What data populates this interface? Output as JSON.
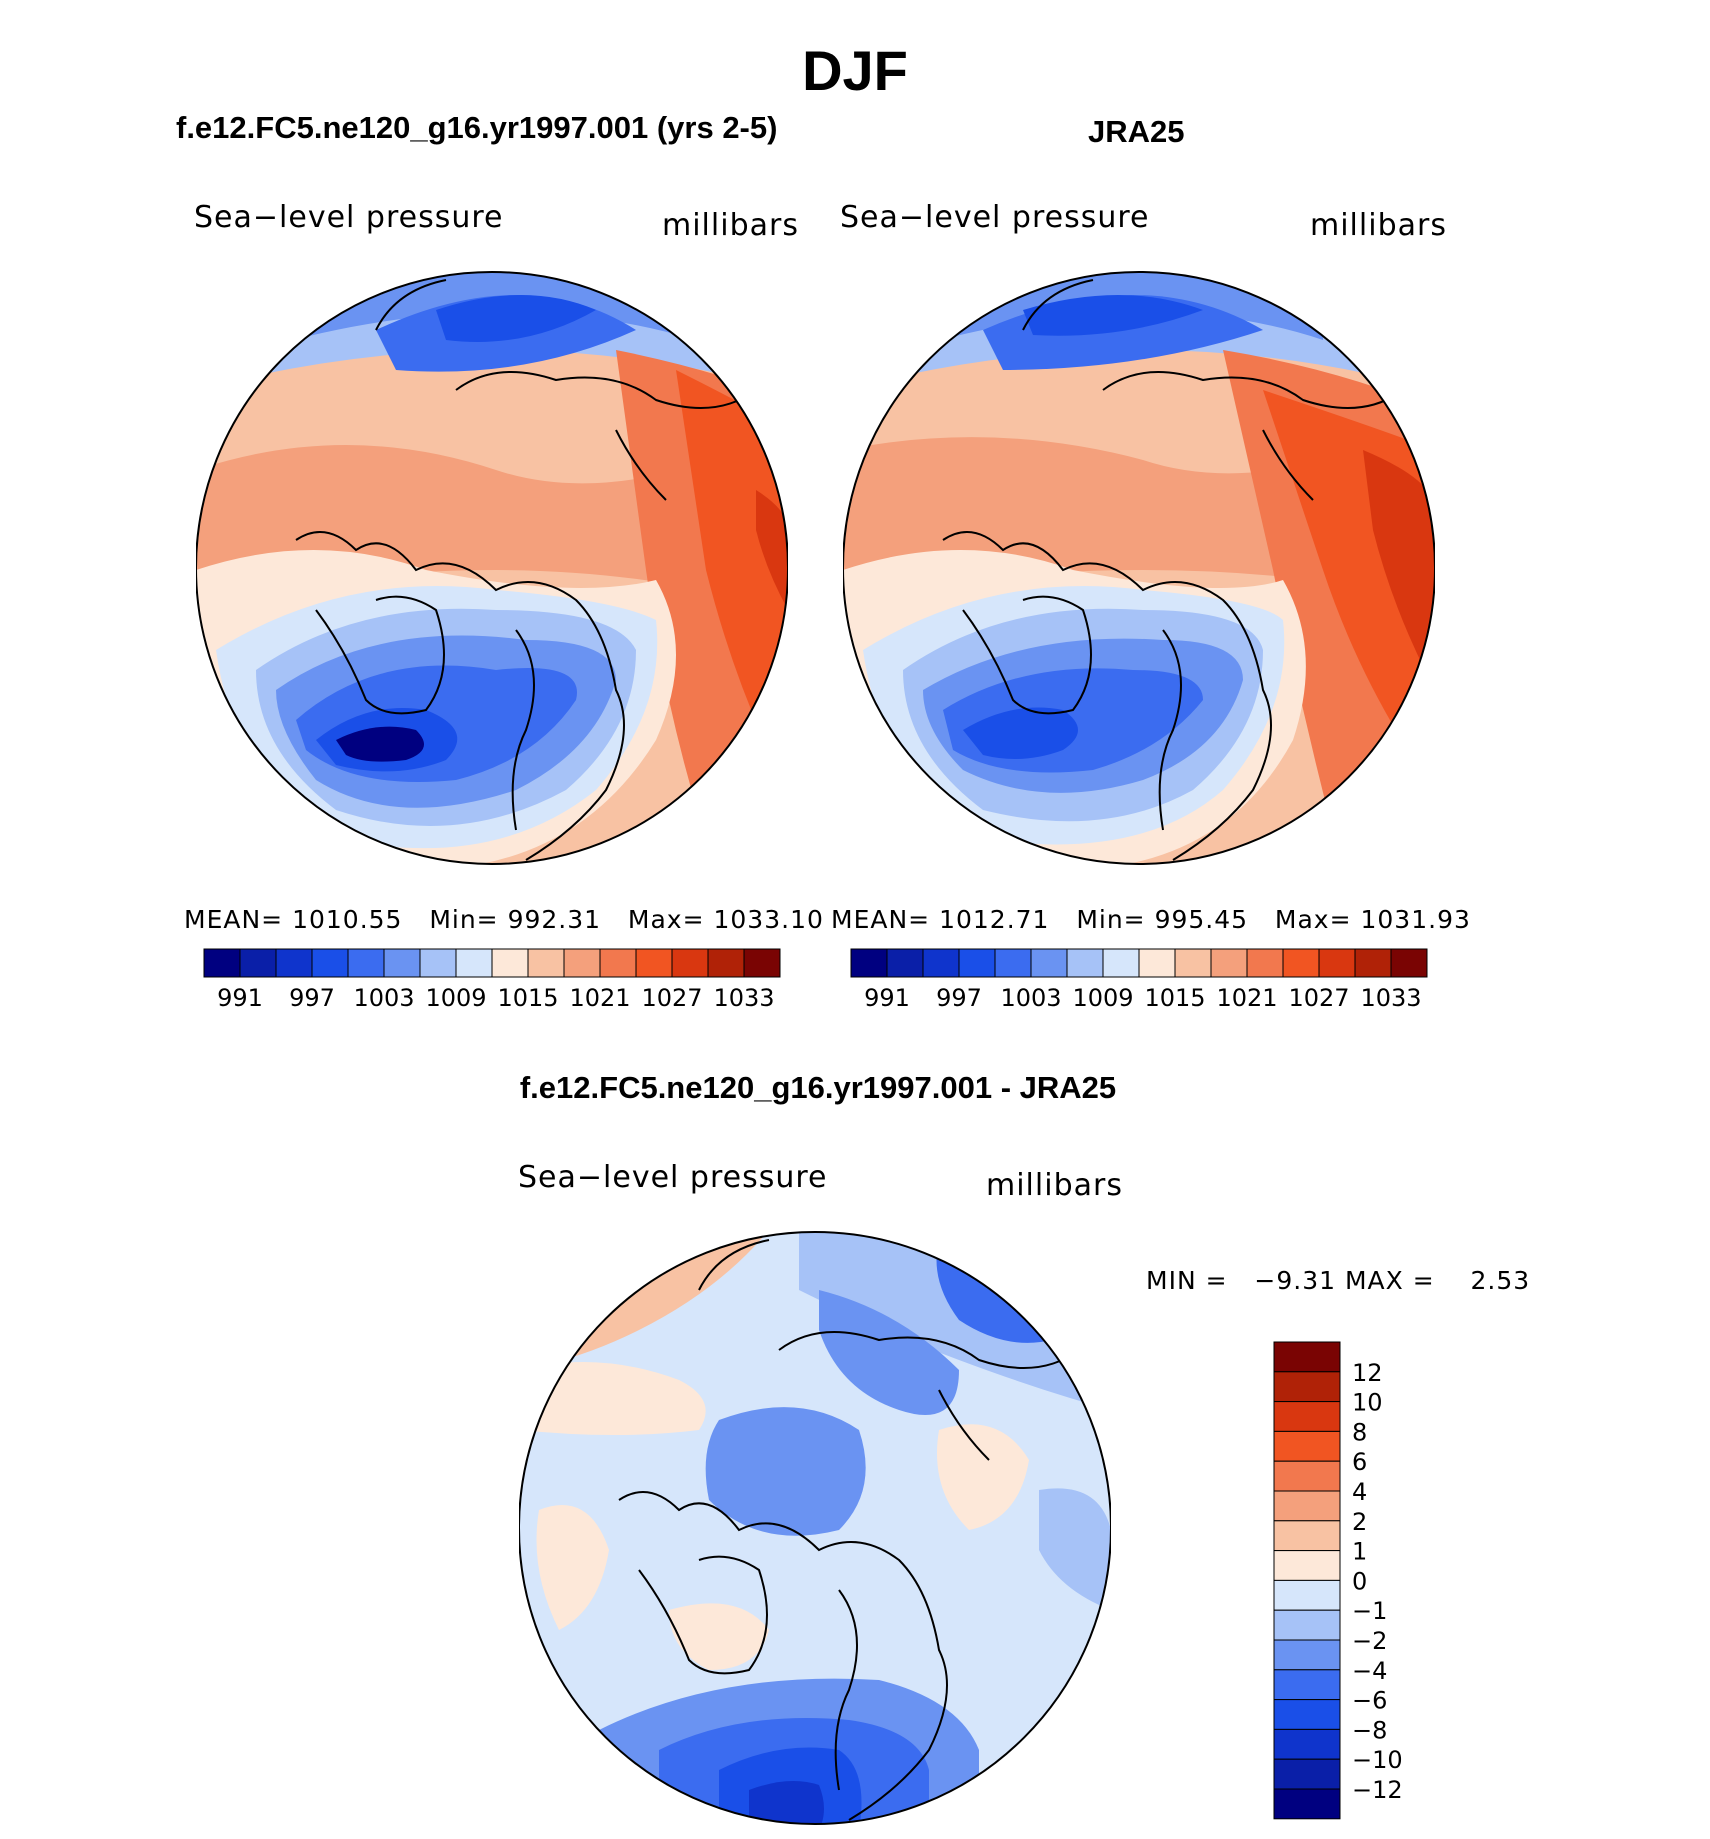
{
  "page_title": "DJF",
  "colors": {
    "abs_scale": [
      "#000080",
      "#0a1fa8",
      "#0f34cc",
      "#1a4fe8",
      "#3b6cf0",
      "#6a93f2",
      "#a6c2f7",
      "#d6e6fb",
      "#fde8d9",
      "#f8c2a3",
      "#f4a07c",
      "#f2784e",
      "#f15522",
      "#d93710",
      "#b02207",
      "#7a0403"
    ],
    "diff_scale": [
      "#000080",
      "#0a1fa8",
      "#0f34cc",
      "#1a4fe8",
      "#3b6cf0",
      "#6a93f2",
      "#a6c2f7",
      "#d6e6fb",
      "#fde8d9",
      "#f8c2a3",
      "#f4a07c",
      "#f2784e",
      "#f15522",
      "#d93710",
      "#b02207",
      "#7a0403"
    ],
    "land_outline": "#000000"
  },
  "panels": [
    {
      "id": "model",
      "case_title": "f.e12.FC5.ne120_g16.yr1997.001 (yrs 2-5)",
      "variable": "Sea−level pressure",
      "units": "millibars",
      "stats": {
        "mean_label": "MEAN=",
        "mean": "1010.55",
        "min_label": "Min=",
        "min": "992.31",
        "max_label": "Max=",
        "max": "1033.10"
      },
      "colorbar_labels": [
        "991",
        "997",
        "1003",
        "1009",
        "1015",
        "1021",
        "1027",
        "1033"
      ]
    },
    {
      "id": "obs",
      "case_title": "JRA25",
      "variable": "Sea−level pressure",
      "units": "millibars",
      "stats": {
        "mean_label": "MEAN=",
        "mean": "1012.71",
        "min_label": "Min=",
        "min": "995.45",
        "max_label": "Max=",
        "max": "1031.93"
      },
      "colorbar_labels": [
        "991",
        "997",
        "1003",
        "1009",
        "1015",
        "1021",
        "1027",
        "1033"
      ]
    }
  ],
  "difference": {
    "title": "f.e12.FC5.ne120_g16.yr1997.001 - JRA25",
    "variable": "Sea−level pressure",
    "units": "millibars",
    "min_label": "MIN =",
    "min": "−9.31",
    "max_label": "MAX =",
    "max": "2.53",
    "colorbar_labels": [
      "12",
      "10",
      "8",
      "6",
      "4",
      "2",
      "1",
      "0",
      "−1",
      "−2",
      "−4",
      "−6",
      "−8",
      "−10",
      "−12"
    ]
  }
}
